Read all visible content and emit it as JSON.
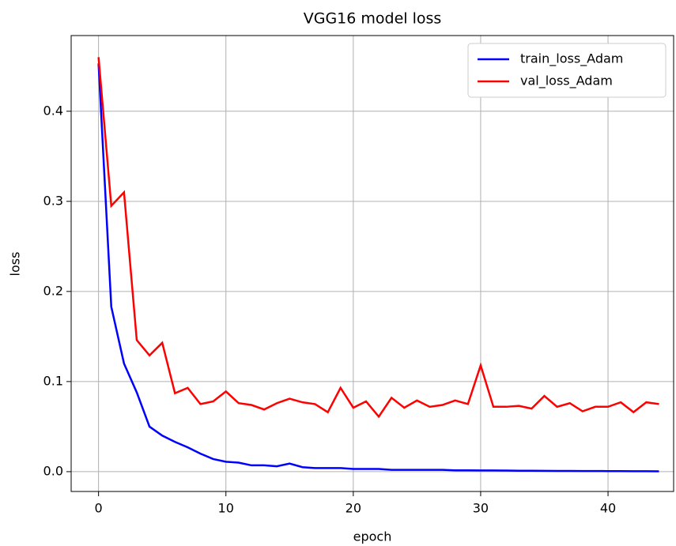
{
  "chart_data": {
    "type": "line",
    "title": "VGG16 model loss",
    "xlabel": "epoch",
    "ylabel": "loss",
    "x": [
      0,
      1,
      2,
      3,
      4,
      5,
      6,
      7,
      8,
      9,
      10,
      11,
      12,
      13,
      14,
      15,
      16,
      17,
      18,
      19,
      20,
      21,
      22,
      23,
      24,
      25,
      26,
      27,
      28,
      29,
      30,
      31,
      32,
      33,
      34,
      35,
      36,
      37,
      38,
      39,
      40,
      41,
      42,
      43,
      44
    ],
    "series": [
      {
        "name": "train_loss_Adam",
        "color": "#0000ff",
        "values": [
          0.453,
          0.183,
          0.12,
          0.088,
          0.05,
          0.04,
          0.033,
          0.027,
          0.02,
          0.014,
          0.011,
          0.01,
          0.007,
          0.007,
          0.006,
          0.009,
          0.005,
          0.004,
          0.004,
          0.004,
          0.003,
          0.003,
          0.003,
          0.002,
          0.002,
          0.002,
          0.002,
          0.002,
          0.0015,
          0.0015,
          0.0013,
          0.0013,
          0.0012,
          0.001,
          0.001,
          0.0009,
          0.0008,
          0.0008,
          0.0007,
          0.0007,
          0.0006,
          0.0006,
          0.0005,
          0.0005,
          0.0004
        ]
      },
      {
        "name": "val_loss_Adam",
        "color": "#ff0000",
        "values": [
          0.46,
          0.295,
          0.31,
          0.146,
          0.129,
          0.143,
          0.087,
          0.093,
          0.075,
          0.078,
          0.089,
          0.076,
          0.074,
          0.069,
          0.076,
          0.081,
          0.077,
          0.075,
          0.066,
          0.093,
          0.071,
          0.078,
          0.061,
          0.082,
          0.071,
          0.079,
          0.072,
          0.074,
          0.079,
          0.075,
          0.118,
          0.072,
          0.072,
          0.073,
          0.07,
          0.084,
          0.072,
          0.076,
          0.067,
          0.072,
          0.072,
          0.077,
          0.066,
          0.077,
          0.075
        ]
      }
    ],
    "xlim": [
      -2.15,
      45.15
    ],
    "ylim": [
      -0.022,
      0.484
    ],
    "xticks": [
      0,
      10,
      20,
      30,
      40
    ],
    "yticks": [
      {
        "value": 0,
        "label": "0.0"
      },
      0.1,
      0.2,
      0.3,
      0.4
    ],
    "grid": true,
    "legend": "upper right"
  }
}
